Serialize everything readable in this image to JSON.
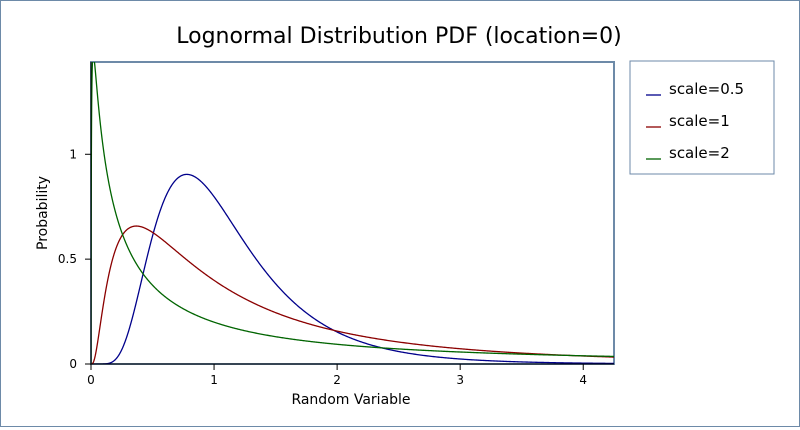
{
  "chart_data": {
    "type": "line",
    "title": "Lognormal Distribution PDF (location=0)",
    "xlabel": "Random Variable",
    "ylabel": "Probability",
    "xlim": [
      0,
      4.25
    ],
    "ylim": [
      0,
      1.44
    ],
    "x_ticks": [
      0,
      1,
      2,
      3,
      4
    ],
    "x_tick_labels": [
      "0",
      "1",
      "2",
      "3",
      "4"
    ],
    "y_ticks": [
      0,
      0.5,
      1
    ],
    "y_tick_labels": [
      "0",
      "0.5",
      "1"
    ],
    "grid": false,
    "legend": "outside-right-top",
    "series": [
      {
        "name": "scale=0.5",
        "color": "#00008b",
        "sigma": 0.5,
        "x": [
          0.1,
          0.2,
          0.3,
          0.4,
          0.5,
          0.6,
          0.7,
          0.78,
          0.9,
          1.0,
          1.2,
          1.4,
          1.6,
          1.8,
          2.0,
          2.5,
          3.0,
          3.5,
          4.0,
          4.25
        ],
        "values": [
          0.0,
          0.01,
          0.1,
          0.31,
          0.6,
          0.82,
          0.9,
          0.9,
          0.86,
          0.8,
          0.6,
          0.43,
          0.28,
          0.2,
          0.15,
          0.05,
          0.02,
          0.01,
          0.0,
          0.0
        ]
      },
      {
        "name": "scale=1",
        "color": "#8b0000",
        "sigma": 1.0,
        "x": [
          0.05,
          0.1,
          0.2,
          0.3,
          0.37,
          0.5,
          0.7,
          1.0,
          1.5,
          2.0,
          2.5,
          3.0,
          3.5,
          4.0,
          4.25
        ],
        "values": [
          0.1,
          0.28,
          0.55,
          0.64,
          0.66,
          0.63,
          0.54,
          0.4,
          0.24,
          0.16,
          0.11,
          0.07,
          0.05,
          0.04,
          0.03
        ]
      },
      {
        "name": "scale=2",
        "color": "#006400",
        "sigma": 2.0,
        "x": [
          0.01,
          0.05,
          0.1,
          0.2,
          0.3,
          0.5,
          0.7,
          1.0,
          1.5,
          2.0,
          2.5,
          3.0,
          3.5,
          4.0,
          4.25
        ],
        "values": [
          1.4,
          1.3,
          1.0,
          0.68,
          0.52,
          0.36,
          0.27,
          0.2,
          0.14,
          0.1,
          0.08,
          0.06,
          0.05,
          0.04,
          0.04
        ]
      }
    ]
  }
}
